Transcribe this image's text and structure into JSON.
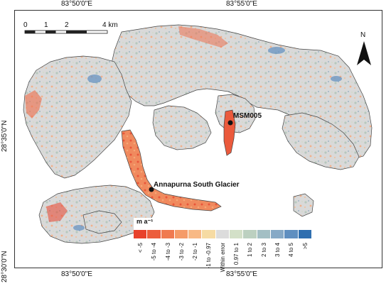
{
  "map": {
    "coords_top": [
      "83°50'0\"E",
      "83°55'0\"E"
    ],
    "coords_bottom": [
      "83°50'0\"E",
      "83°55'0\"E"
    ],
    "coords_left": [
      "28°35'0\"N",
      "28°30'0\"N"
    ],
    "scale_bar": {
      "labels": [
        "0",
        "1",
        "2",
        "4 km"
      ]
    },
    "north_arrow": {
      "label": "N"
    },
    "places": [
      {
        "name": "Annapurna South Glacier"
      },
      {
        "name": "MSM005"
      }
    ]
  },
  "legend": {
    "unit": "m a⁻¹",
    "classes": [
      {
        "label": "< -5",
        "color": "#e8412b"
      },
      {
        "label": "-5 to -4",
        "color": "#ec5d3c"
      },
      {
        "label": "-4 to -3",
        "color": "#f07a50"
      },
      {
        "label": "-3 to -2",
        "color": "#f59b68"
      },
      {
        "label": "-2 to -1",
        "color": "#f8b985"
      },
      {
        "label": "-1 to -0.97",
        "color": "#f6dba3"
      },
      {
        "label": "Within error",
        "color": "#dcdcdc"
      },
      {
        "label": "0.97 to 1",
        "color": "#d3e0c8"
      },
      {
        "label": "1 to 2",
        "color": "#bcd0c0"
      },
      {
        "label": "2 to 3",
        "color": "#a3bfc4"
      },
      {
        "label": "3 to 4",
        "color": "#86a9c6"
      },
      {
        "label": "4 to 5",
        "color": "#5f8fc0"
      },
      {
        "label": ">5",
        "color": "#2f6fb0"
      }
    ]
  }
}
